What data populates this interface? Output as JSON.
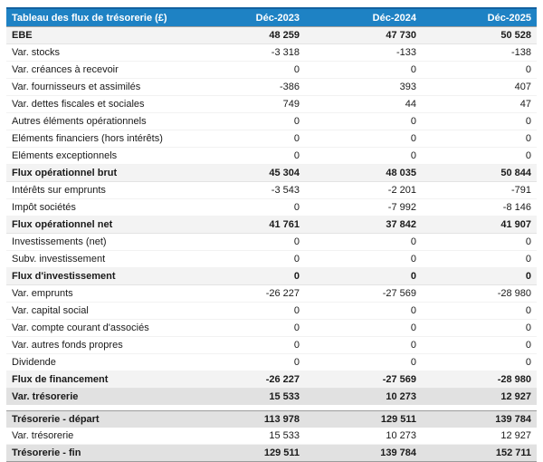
{
  "colors": {
    "header_bg": "#1e82c4",
    "header_top_border": "#1261a0",
    "header_text": "#ffffff",
    "subtotal_row_bg": "#f3f3f3",
    "highlight_row_bg": "#e1e1e1",
    "body_text": "#1a1a1a"
  },
  "chart_data": {
    "type": "table",
    "title": "Tableau des flux de trésorerie (£)",
    "columns": [
      "Déc-2023",
      "Déc-2024",
      "Déc-2025"
    ],
    "rows": [
      {
        "label": "EBE",
        "values": [
          "48 259",
          "47 730",
          "50 528"
        ],
        "style": "subtotal"
      },
      {
        "label": "Var. stocks",
        "values": [
          "-3 318",
          "-133",
          "-138"
        ],
        "style": "normal"
      },
      {
        "label": "Var. créances à recevoir",
        "values": [
          "0",
          "0",
          "0"
        ],
        "style": "normal"
      },
      {
        "label": "Var. fournisseurs et assimilés",
        "values": [
          "-386",
          "393",
          "407"
        ],
        "style": "normal"
      },
      {
        "label": "Var. dettes fiscales et sociales",
        "values": [
          "749",
          "44",
          "47"
        ],
        "style": "normal"
      },
      {
        "label": "Autres éléments opérationnels",
        "values": [
          "0",
          "0",
          "0"
        ],
        "style": "normal"
      },
      {
        "label": "Eléments financiers (hors intérêts)",
        "values": [
          "0",
          "0",
          "0"
        ],
        "style": "normal"
      },
      {
        "label": "Eléments exceptionnels",
        "values": [
          "0",
          "0",
          "0"
        ],
        "style": "normal"
      },
      {
        "label": "Flux opérationnel brut",
        "values": [
          "45 304",
          "48 035",
          "50 844"
        ],
        "style": "subtotal"
      },
      {
        "label": "Intérêts sur emprunts",
        "values": [
          "-3 543",
          "-2 201",
          "-791"
        ],
        "style": "normal"
      },
      {
        "label": "Impôt sociétés",
        "values": [
          "0",
          "-7 992",
          "-8 146"
        ],
        "style": "normal"
      },
      {
        "label": "Flux opérationnel net",
        "values": [
          "41 761",
          "37 842",
          "41 907"
        ],
        "style": "subtotal"
      },
      {
        "label": "Investissements (net)",
        "values": [
          "0",
          "0",
          "0"
        ],
        "style": "normal"
      },
      {
        "label": "Subv. investissement",
        "values": [
          "0",
          "0",
          "0"
        ],
        "style": "normal"
      },
      {
        "label": "Flux d'investissement",
        "values": [
          "0",
          "0",
          "0"
        ],
        "style": "subtotal"
      },
      {
        "label": "Var. emprunts",
        "values": [
          "-26 227",
          "-27 569",
          "-28 980"
        ],
        "style": "normal"
      },
      {
        "label": "Var. capital social",
        "values": [
          "0",
          "0",
          "0"
        ],
        "style": "normal"
      },
      {
        "label": "Var. compte courant d'associés",
        "values": [
          "0",
          "0",
          "0"
        ],
        "style": "normal"
      },
      {
        "label": "Var. autres fonds propres",
        "values": [
          "0",
          "0",
          "0"
        ],
        "style": "normal"
      },
      {
        "label": "Dividende",
        "values": [
          "0",
          "0",
          "0"
        ],
        "style": "normal"
      },
      {
        "label": "Flux de financement",
        "values": [
          "-26 227",
          "-27 569",
          "-28 980"
        ],
        "style": "subtotal"
      },
      {
        "label": "Var. trésorerie",
        "values": [
          "15 533",
          "10 273",
          "12 927"
        ],
        "style": "highlight"
      },
      {
        "label": "",
        "values": [],
        "style": "spacer"
      },
      {
        "label": "Trésorerie - départ",
        "values": [
          "113 978",
          "129 511",
          "139 784"
        ],
        "style": "highlight"
      },
      {
        "label": "Var. trésorerie",
        "values": [
          "15 533",
          "10 273",
          "12 927"
        ],
        "style": "normal"
      },
      {
        "label": "Trésorerie - fin",
        "values": [
          "129 511",
          "139 784",
          "152 711"
        ],
        "style": "highlight"
      }
    ]
  }
}
